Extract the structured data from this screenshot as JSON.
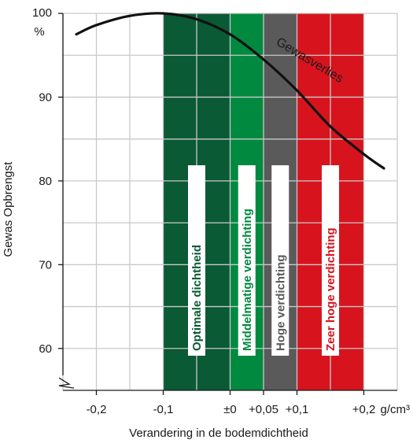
{
  "chart_data": {
    "type": "area",
    "title": "",
    "xlabel": "Verandering in de bodemdichtheid",
    "ylabel": "Gewas Opbrengst",
    "y_unit": "%",
    "x_unit": "g/cm³",
    "xlim": [
      -0.25,
      0.25
    ],
    "ylim": [
      55,
      100
    ],
    "grid": true,
    "y_axis_break": true,
    "x_ticks": [
      {
        "value": -0.2,
        "label": "-0,2"
      },
      {
        "value": -0.1,
        "label": "-0,1"
      },
      {
        "value": 0,
        "label": "±0"
      },
      {
        "value": 0.05,
        "label": "+0,05"
      },
      {
        "value": 0.1,
        "label": "+0,1"
      },
      {
        "value": 0.2,
        "label": "+0,2"
      }
    ],
    "y_ticks": [
      {
        "value": 60,
        "label": "60"
      },
      {
        "value": 70,
        "label": "70"
      },
      {
        "value": 80,
        "label": "80"
      },
      {
        "value": 90,
        "label": "90"
      },
      {
        "value": 100,
        "label": "100"
      }
    ],
    "series": [
      {
        "name": "Gewasverlies",
        "x": [
          -0.23,
          -0.2,
          -0.15,
          -0.1,
          -0.05,
          0.0,
          0.05,
          0.1,
          0.15,
          0.2,
          0.23
        ],
        "y": [
          97.5,
          98.6,
          99.7,
          100.0,
          99.3,
          97.5,
          94.5,
          90.8,
          86.5,
          83.2,
          81.5
        ]
      }
    ],
    "zones": [
      {
        "label": "Optimale dichtheid",
        "from": -0.1,
        "to": 0.0,
        "color": "#0a5a35",
        "text_color": "#0a5a35"
      },
      {
        "label": "Middelmatige verdichting",
        "from": 0.0,
        "to": 0.05,
        "color": "#00893f",
        "text_color": "#00893f"
      },
      {
        "label": "Hoge verdichting",
        "from": 0.05,
        "to": 0.1,
        "color": "#5a5a5a",
        "text_color": "#5a5a5a"
      },
      {
        "label": "Zeer hoge verdichting",
        "from": 0.1,
        "to": 0.2,
        "color": "#d7141e",
        "text_color": "#d7141e"
      }
    ]
  }
}
